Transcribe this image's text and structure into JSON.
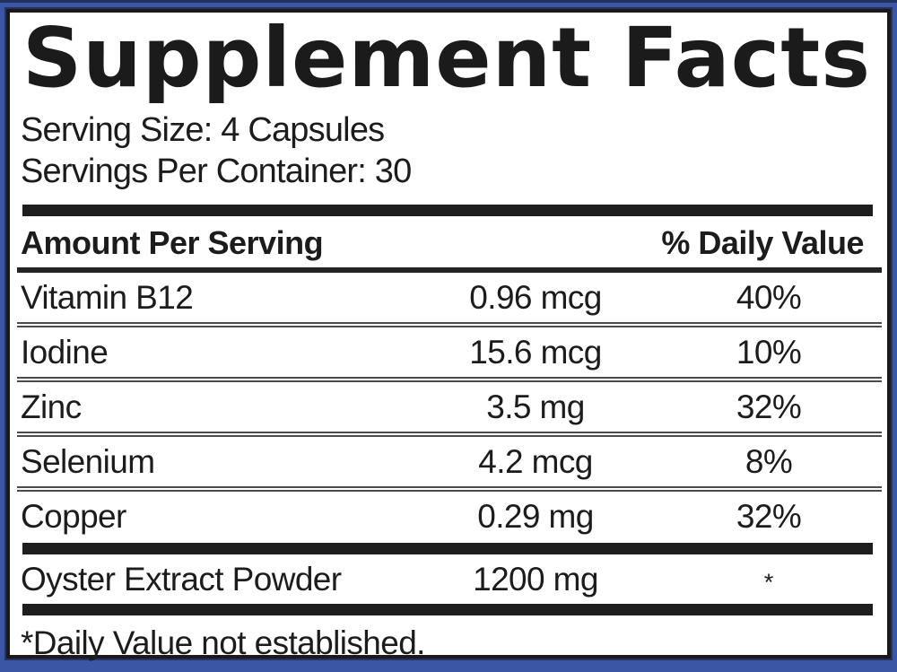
{
  "label": {
    "title": "Supplement Facts",
    "serving_size": "Serving Size: 4 Capsules",
    "servings_per_container": "Servings Per Container: 30",
    "header": {
      "amount": "Amount Per Serving",
      "daily_value": "% Daily Value"
    },
    "rows": [
      {
        "name": "Vitamin B12",
        "amount": "0.96 mcg",
        "dv": "40%"
      },
      {
        "name": "Iodine",
        "amount": "15.6 mcg",
        "dv": "10%"
      },
      {
        "name": "Zinc",
        "amount": "3.5 mg",
        "dv": "32%"
      },
      {
        "name": "Selenium",
        "amount": "4.2 mcg",
        "dv": "8%"
      },
      {
        "name": "Copper",
        "amount": "0.29 mg",
        "dv": "32%"
      }
    ],
    "extra_row": {
      "name": "Oyster Extract Powder",
      "amount": "1200 mg",
      "dv": "*"
    },
    "footnote": "*Daily Value not established.",
    "colors": {
      "frame_blue": "#3c56a6",
      "frame_navy_edge": "#24335f",
      "panel_border": "#1a1a1a",
      "text": "#1c1c1c",
      "thick_bar": "#1e1e1e",
      "separator": "#4b4b4b"
    }
  }
}
